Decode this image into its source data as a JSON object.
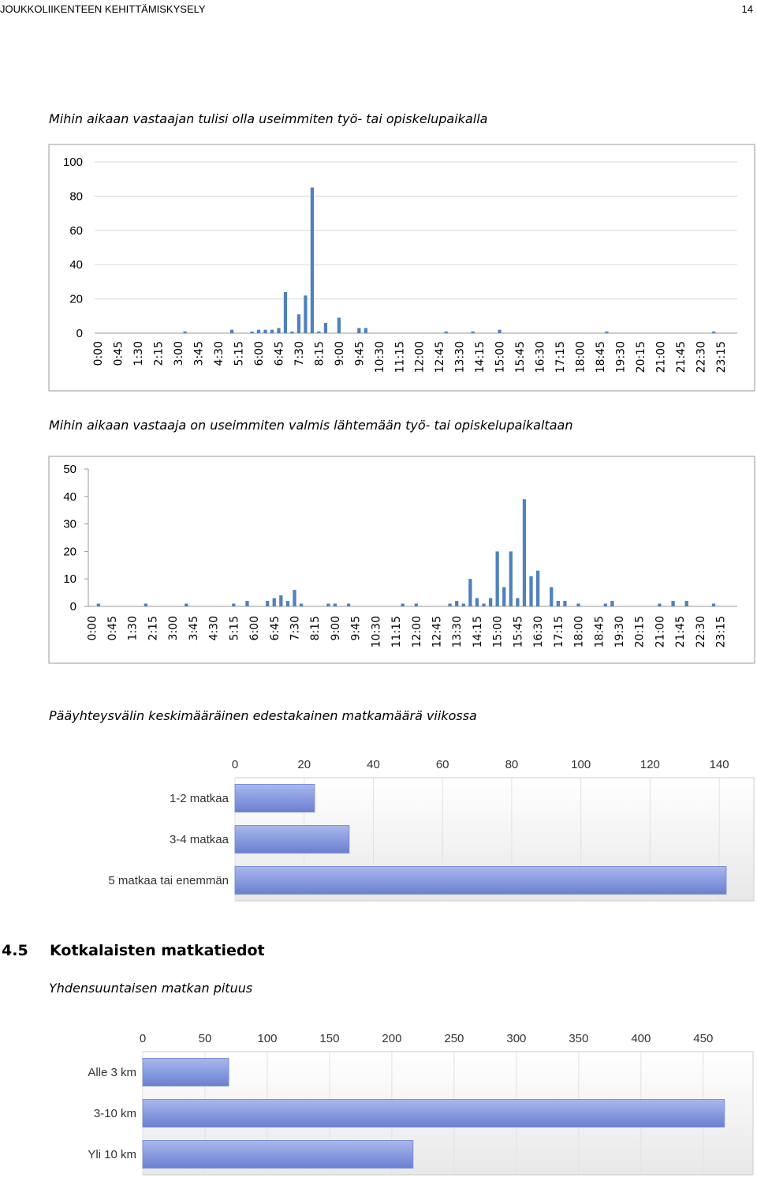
{
  "header": {
    "title": "JOUKKOLIIKENTEEN KEHITTÄMISKYSELY",
    "page": "14"
  },
  "section": {
    "number": "4.5",
    "title": "Kotkalaisten matkatiedot",
    "subtitle": "Yhdensuuntaisen matkan pituus"
  },
  "chart_data": [
    {
      "type": "bar",
      "title": "Mihin aikaan vastaajan tulisi olla useimmiten työ- tai opiskelupaikalla",
      "categories": [
        "0:00",
        null,
        null,
        "0:45",
        null,
        null,
        "1:30",
        null,
        null,
        "2:15",
        null,
        null,
        "3:00",
        null,
        null,
        "3:45",
        null,
        null,
        "4:30",
        null,
        null,
        "5:15",
        null,
        null,
        "6:00",
        null,
        null,
        "6:45",
        null,
        null,
        "7:30",
        null,
        null,
        "8:15",
        null,
        null,
        "9:00",
        null,
        null,
        "9:45",
        null,
        null,
        "10:30",
        null,
        null,
        "11:15",
        null,
        null,
        "12:00",
        null,
        null,
        "12:45",
        null,
        null,
        "13:30",
        null,
        null,
        "14:15",
        null,
        null,
        "15:00",
        null,
        null,
        "15:45",
        null,
        null,
        "16:30",
        null,
        null,
        "17:15",
        null,
        null,
        "18:00",
        null,
        null,
        "18:45",
        null,
        null,
        "19:30",
        null,
        null,
        "20:15",
        null,
        null,
        "21:00",
        null,
        null,
        "21:45",
        null,
        null,
        "22:30",
        null,
        null,
        "23:15",
        null,
        null
      ],
      "values": [
        0,
        0,
        0,
        0,
        0,
        0,
        0,
        0,
        0,
        0,
        0,
        0,
        0,
        1,
        0,
        0,
        0,
        0,
        0,
        0,
        2,
        0,
        0,
        1,
        2,
        2,
        2,
        3,
        24,
        1,
        11,
        22,
        85,
        1,
        6,
        0,
        9,
        0,
        0,
        3,
        3,
        0,
        0,
        0,
        0,
        0,
        0,
        0,
        0,
        0,
        0,
        0,
        1,
        0,
        0,
        0,
        1,
        0,
        0,
        0,
        2,
        0,
        0,
        0,
        0,
        0,
        0,
        0,
        0,
        0,
        0,
        0,
        0,
        0,
        0,
        0,
        1,
        0,
        0,
        0,
        0,
        0,
        0,
        0,
        0,
        0,
        0,
        0,
        0,
        0,
        0,
        0,
        1,
        0,
        0,
        0
      ],
      "color": "#4f81bd",
      "ylim": [
        0,
        100
      ],
      "yticks": [
        0,
        20,
        40,
        60,
        80,
        100
      ],
      "grid": true
    },
    {
      "type": "bar",
      "title": "Mihin aikaan vastaaja on useimmiten valmis lähtemään työ- tai opiskelupaikaltaan",
      "categories": [
        "0:00",
        null,
        null,
        "0:45",
        null,
        null,
        "1:30",
        null,
        null,
        "2:15",
        null,
        null,
        "3:00",
        null,
        null,
        "3:45",
        null,
        null,
        "4:30",
        null,
        null,
        "5:15",
        null,
        null,
        "6:00",
        null,
        null,
        "6:45",
        null,
        null,
        "7:30",
        null,
        null,
        "8:15",
        null,
        null,
        "9:00",
        null,
        null,
        "9:45",
        null,
        null,
        "10:30",
        null,
        null,
        "11:15",
        null,
        null,
        "12:00",
        null,
        null,
        "12:45",
        null,
        null,
        "13:30",
        null,
        null,
        "14:15",
        null,
        null,
        "15:00",
        null,
        null,
        "15:45",
        null,
        null,
        "16:30",
        null,
        null,
        "17:15",
        null,
        null,
        "18:00",
        null,
        null,
        "18:45",
        null,
        null,
        "19:30",
        null,
        null,
        "20:15",
        null,
        null,
        "21:00",
        null,
        null,
        "21:45",
        null,
        null,
        "22:30",
        null,
        null,
        "23:15",
        null,
        null
      ],
      "values": [
        0,
        1,
        0,
        0,
        0,
        0,
        0,
        0,
        1,
        0,
        0,
        0,
        0,
        0,
        1,
        0,
        0,
        0,
        0,
        0,
        0,
        1,
        0,
        2,
        0,
        0,
        2,
        3,
        4,
        2,
        6,
        1,
        0,
        0,
        0,
        1,
        1,
        0,
        1,
        0,
        0,
        0,
        0,
        0,
        0,
        0,
        1,
        0,
        1,
        0,
        0,
        0,
        0,
        1,
        2,
        1,
        10,
        3,
        1,
        3,
        20,
        7,
        20,
        3,
        39,
        11,
        13,
        0,
        7,
        2,
        2,
        0,
        1,
        0,
        0,
        0,
        1,
        2,
        0,
        0,
        0,
        0,
        0,
        0,
        1,
        0,
        2,
        0,
        2,
        0,
        0,
        0,
        1,
        0,
        0,
        0
      ],
      "color": "#4f81bd",
      "ylim": [
        0,
        50
      ],
      "yticks": [
        0,
        10,
        20,
        30,
        40,
        50
      ],
      "grid": false
    },
    {
      "type": "barh",
      "title": "Pääyhteysvälin keskimääräinen edestakainen matkamäärä viikossa",
      "categories": [
        "1-2 matkaa",
        "3-4 matkaa",
        "5 matkaa tai enemmän"
      ],
      "values": [
        23,
        33,
        142
      ],
      "color": "#7b8fd8",
      "xlim": [
        0,
        150
      ],
      "xticks": [
        0,
        20,
        40,
        60,
        80,
        100,
        120,
        140
      ],
      "grid": true
    },
    {
      "type": "barh",
      "categories": [
        "Alle 3 km",
        "3-10 km",
        "Yli 10 km"
      ],
      "values": [
        69,
        467,
        217
      ],
      "color": "#7b8fd8",
      "xlim": [
        0,
        490
      ],
      "xticks": [
        0,
        50,
        100,
        150,
        200,
        250,
        300,
        350,
        400,
        450
      ],
      "grid": true
    }
  ]
}
